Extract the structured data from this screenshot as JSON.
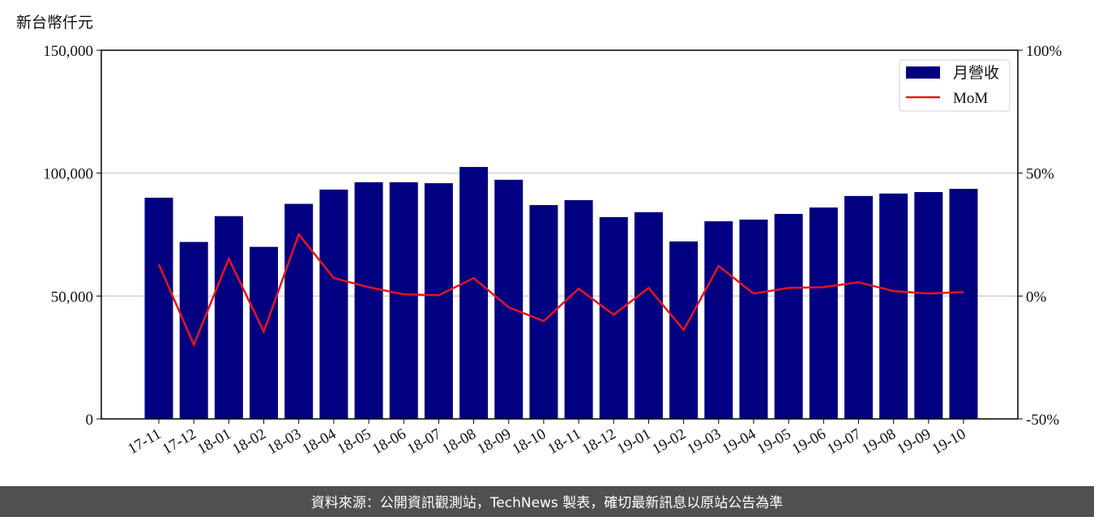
{
  "chart_data": {
    "type": "bar-line",
    "ylabel": "新台幣仟元",
    "footer": "資料來源：公開資訊觀測站，TechNews 製表，確切最新訊息以原站公告為準",
    "categories": [
      "17-11",
      "17-12",
      "18-01",
      "18-02",
      "18-03",
      "18-04",
      "18-05",
      "18-06",
      "18-07",
      "18-08",
      "18-09",
      "18-10",
      "18-11",
      "18-12",
      "19-01",
      "19-02",
      "19-03",
      "19-04",
      "19-05",
      "19-06",
      "19-07",
      "19-08",
      "19-09",
      "19-10"
    ],
    "series": [
      {
        "name": "月營收",
        "type": "bar",
        "color": "#000080",
        "values": [
          90000,
          72000,
          82500,
          70000,
          87500,
          93300,
          96300,
          96300,
          95900,
          102500,
          97300,
          87000,
          89000,
          82100,
          84100,
          72200,
          80400,
          81100,
          83400,
          86000,
          90700,
          91700,
          92300,
          93600
        ]
      },
      {
        "name": "MoM",
        "type": "line",
        "axis": "y2",
        "color": "#e8141c",
        "values": [
          12.9,
          -19.8,
          15.2,
          -14.5,
          25.1,
          7.3,
          3.6,
          0.7,
          0.3,
          7.3,
          -4.6,
          -10.2,
          3.0,
          -7.6,
          3.3,
          -13.8,
          12.2,
          1.0,
          3.3,
          3.6,
          5.6,
          2.0,
          1.0,
          1.6
        ]
      }
    ],
    "ylim": [
      0,
      150000
    ],
    "yticks": [
      0,
      {
        "value": 50000,
        "label": "50,000"
      },
      {
        "value": 100000,
        "label": "100,000"
      },
      {
        "value": 150000,
        "label": "150,000"
      }
    ],
    "y2lim": [
      -50,
      100
    ],
    "y2ticks": [
      {
        "value": -50,
        "label": "-50%"
      },
      {
        "value": 0,
        "label": "0%"
      },
      {
        "value": 50,
        "label": "50%"
      },
      {
        "value": 100,
        "label": "100%"
      }
    ],
    "grid": true,
    "legend": "upper right"
  }
}
